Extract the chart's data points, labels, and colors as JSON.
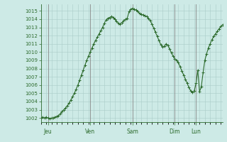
{
  "bg_color": "#cdeae6",
  "line_color": "#2d6b2d",
  "marker": "+",
  "marker_size": 2.5,
  "line_width": 0.8,
  "ylim": [
    1001.5,
    1015.8
  ],
  "yticks": [
    1002,
    1003,
    1004,
    1005,
    1006,
    1007,
    1008,
    1009,
    1010,
    1011,
    1012,
    1013,
    1014,
    1015
  ],
  "day_labels": [
    "Jeu",
    "Ven",
    "Sam",
    "Dim",
    "Lun"
  ],
  "day_positions": [
    4,
    28,
    52,
    76,
    88
  ],
  "grid_color": "#aaccc8",
  "tick_color": "#2d6b2d",
  "axis_color": "#2d6b2d",
  "values": [
    1002.0,
    1002.1,
    1002.0,
    1002.1,
    1002.0,
    1001.9,
    1002.0,
    1002.0,
    1002.1,
    1002.2,
    1002.3,
    1002.5,
    1002.8,
    1003.0,
    1003.2,
    1003.5,
    1003.8,
    1004.2,
    1004.6,
    1005.0,
    1005.5,
    1006.0,
    1006.6,
    1007.2,
    1007.8,
    1008.4,
    1009.0,
    1009.5,
    1010.0,
    1010.5,
    1011.0,
    1011.4,
    1011.8,
    1012.2,
    1012.6,
    1013.0,
    1013.5,
    1013.9,
    1014.1,
    1014.2,
    1014.3,
    1014.2,
    1014.0,
    1013.7,
    1013.5,
    1013.4,
    1013.6,
    1013.8,
    1014.0,
    1014.1,
    1014.9,
    1015.2,
    1015.3,
    1015.2,
    1015.1,
    1014.9,
    1014.7,
    1014.6,
    1014.5,
    1014.4,
    1014.3,
    1014.1,
    1013.8,
    1013.4,
    1012.9,
    1012.4,
    1011.9,
    1011.4,
    1010.9,
    1010.6,
    1010.7,
    1011.0,
    1010.8,
    1010.4,
    1009.9,
    1009.5,
    1009.2,
    1009.0,
    1008.7,
    1008.2,
    1007.7,
    1007.2,
    1006.7,
    1006.2,
    1005.7,
    1005.3,
    1005.1,
    1005.3,
    1006.2,
    1007.8,
    1005.2,
    1005.8,
    1007.5,
    1009.0,
    1009.8,
    1010.5,
    1011.0,
    1011.5,
    1011.9,
    1012.2,
    1012.5,
    1012.8,
    1013.1,
    1013.3
  ]
}
